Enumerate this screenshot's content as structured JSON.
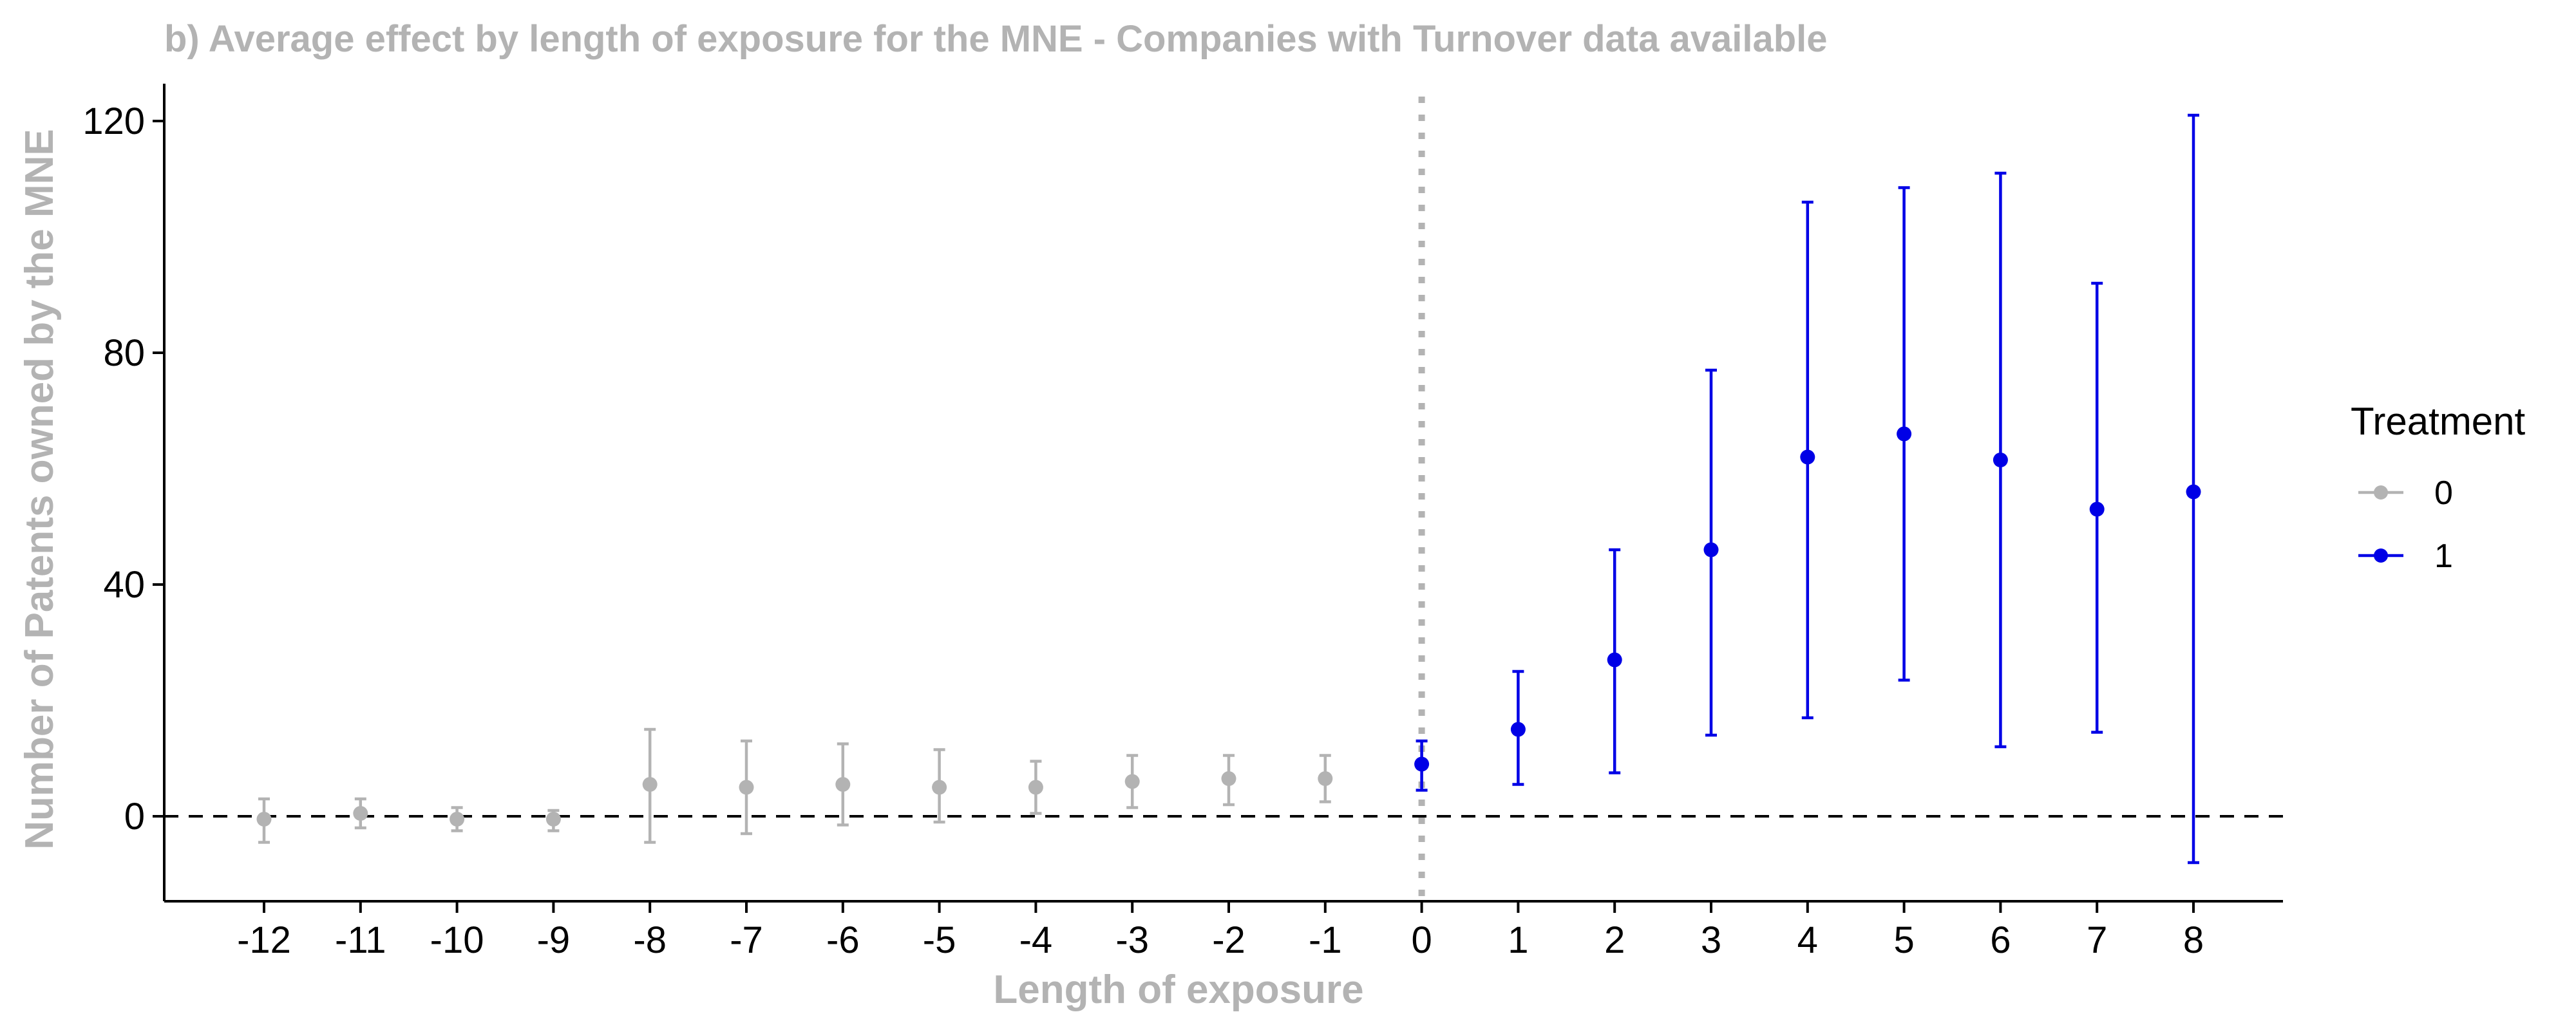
{
  "chart_data": {
    "type": "scatter",
    "title": "b) Average effect by length of exposure for the MNE - Companies with Turnover data available",
    "xlabel": "Length of exposure",
    "ylabel": "Number of Patents owned by the MNE",
    "categories": [
      "-12",
      "-11",
      "-10",
      "-9",
      "-8",
      "-7",
      "-6",
      "-5",
      "-4",
      "-3",
      "-2",
      "-1",
      "0",
      "1",
      "2",
      "3",
      "4",
      "5",
      "6",
      "7",
      "8"
    ],
    "y_ticks": [
      "0",
      "40",
      "80",
      "120"
    ],
    "ylim": [
      -15,
      128
    ],
    "reference_lines": {
      "y": 0,
      "x": "0"
    },
    "legend": {
      "title": "Treatment",
      "position": "right"
    },
    "series": [
      {
        "name": "0",
        "color": "#b3b3b3",
        "points": [
          {
            "x": "-12",
            "y": -0.5,
            "lo": -4.5,
            "hi": 3
          },
          {
            "x": "-11",
            "y": 0.5,
            "lo": -2,
            "hi": 3
          },
          {
            "x": "-10",
            "y": -0.5,
            "lo": -2.5,
            "hi": 1.5
          },
          {
            "x": "-9",
            "y": -0.5,
            "lo": -2.5,
            "hi": 1
          },
          {
            "x": "-8",
            "y": 5.5,
            "lo": -4.5,
            "hi": 15
          },
          {
            "x": "-7",
            "y": 5,
            "lo": -3,
            "hi": 13
          },
          {
            "x": "-6",
            "y": 5.5,
            "lo": -1.5,
            "hi": 12.5
          },
          {
            "x": "-5",
            "y": 5,
            "lo": -1,
            "hi": 11.5
          },
          {
            "x": "-4",
            "y": 5,
            "lo": 0.5,
            "hi": 9.5
          },
          {
            "x": "-3",
            "y": 6,
            "lo": 1.5,
            "hi": 10.5
          },
          {
            "x": "-2",
            "y": 6.5,
            "lo": 2,
            "hi": 10.5
          },
          {
            "x": "-1",
            "y": 6.5,
            "lo": 2.5,
            "hi": 10.5
          }
        ]
      },
      {
        "name": "1",
        "color": "#0000e6",
        "points": [
          {
            "x": "0",
            "y": 9,
            "lo": 4.5,
            "hi": 13
          },
          {
            "x": "1",
            "y": 15,
            "lo": 5.5,
            "hi": 25
          },
          {
            "x": "2",
            "y": 27,
            "lo": 7.5,
            "hi": 46
          },
          {
            "x": "3",
            "y": 46,
            "lo": 14,
            "hi": 77
          },
          {
            "x": "4",
            "y": 62,
            "lo": 17,
            "hi": 106
          },
          {
            "x": "5",
            "y": 66,
            "lo": 23.5,
            "hi": 108.5
          },
          {
            "x": "6",
            "y": 61.5,
            "lo": 12,
            "hi": 111
          },
          {
            "x": "7",
            "y": 53,
            "lo": 14.5,
            "hi": 92
          },
          {
            "x": "8",
            "y": 56,
            "lo": -8,
            "hi": 121
          }
        ]
      }
    ]
  }
}
